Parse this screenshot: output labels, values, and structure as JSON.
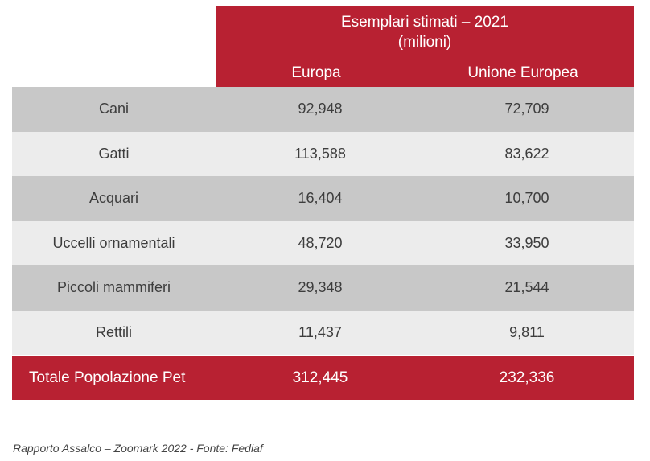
{
  "chart_data": {
    "type": "table",
    "title": "Esemplari stimati – 2021",
    "subtitle": "(milioni)",
    "columns": [
      "Europa",
      "Unione Europea"
    ],
    "rows": [
      {
        "label": "Cani",
        "europa": "92,948",
        "ue": "72,709"
      },
      {
        "label": "Gatti",
        "europa": "113,588",
        "ue": "83,622"
      },
      {
        "label": "Acquari",
        "europa": "16,404",
        "ue": "10,700"
      },
      {
        "label": "Uccelli ornamentali",
        "europa": "48,720",
        "ue": "33,950"
      },
      {
        "label": "Piccoli mammiferi",
        "europa": "29,348",
        "ue": "21,544"
      },
      {
        "label": "Rettili",
        "europa": "11,437",
        "ue": "9,811"
      }
    ],
    "total": {
      "label": "Totale Popolazione Pet",
      "europa": "312,445",
      "ue": "232,336"
    }
  },
  "source": "Rapporto Assalco – Zoomark 2022 - Fonte: Fediaf",
  "colors": {
    "accent": "#b82132",
    "row_dark": "#c8c8c8",
    "row_light": "#ececec"
  }
}
